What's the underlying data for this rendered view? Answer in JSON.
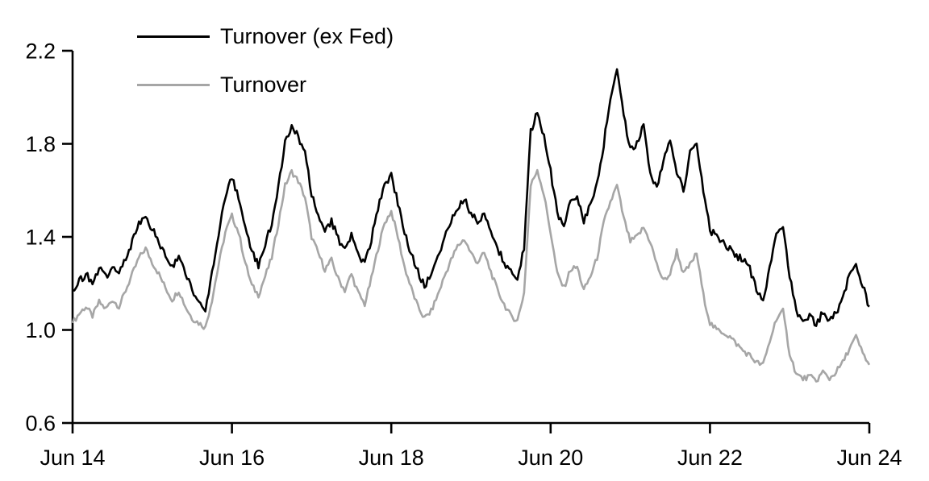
{
  "chart_data": {
    "type": "line",
    "title": "",
    "xlabel": "",
    "ylabel": "",
    "grid": false,
    "legend_position": "top-left",
    "x_axis": {
      "tick_labels": [
        "Jun 14",
        "Jun 16",
        "Jun 18",
        "Jun 20",
        "Jun 22",
        "Jun 24"
      ],
      "tick_month_index": [
        0,
        24,
        48,
        72,
        96,
        120
      ],
      "range_note": "monthly samples, Jun 2014 through Jun 2024 (121 points per series)"
    },
    "y_axis": {
      "min": 0.6,
      "max": 2.2,
      "ticks": [
        0.6,
        1.0,
        1.4,
        1.8,
        2.2
      ],
      "tick_labels": [
        "0.6",
        "1.0",
        "1.4",
        "1.8",
        "2.2"
      ]
    },
    "axis_color": "#000000",
    "series": [
      {
        "name": "Turnover (ex Fed)",
        "color": "#000000",
        "line_width": 2.6,
        "jitter": 0.016,
        "values": [
          1.17,
          1.21,
          1.24,
          1.2,
          1.26,
          1.23,
          1.27,
          1.24,
          1.31,
          1.38,
          1.46,
          1.5,
          1.43,
          1.38,
          1.32,
          1.27,
          1.31,
          1.24,
          1.18,
          1.12,
          1.08,
          1.25,
          1.42,
          1.57,
          1.65,
          1.57,
          1.44,
          1.33,
          1.28,
          1.37,
          1.46,
          1.62,
          1.8,
          1.87,
          1.83,
          1.76,
          1.58,
          1.5,
          1.43,
          1.47,
          1.39,
          1.34,
          1.41,
          1.33,
          1.28,
          1.39,
          1.52,
          1.62,
          1.66,
          1.55,
          1.42,
          1.33,
          1.25,
          1.19,
          1.23,
          1.31,
          1.4,
          1.47,
          1.53,
          1.56,
          1.5,
          1.46,
          1.51,
          1.43,
          1.35,
          1.29,
          1.25,
          1.23,
          1.35,
          1.85,
          1.94,
          1.83,
          1.68,
          1.5,
          1.45,
          1.55,
          1.57,
          1.47,
          1.54,
          1.63,
          1.8,
          2.0,
          2.12,
          1.92,
          1.77,
          1.8,
          1.88,
          1.68,
          1.61,
          1.73,
          1.82,
          1.68,
          1.6,
          1.76,
          1.8,
          1.6,
          1.43,
          1.4,
          1.37,
          1.35,
          1.32,
          1.3,
          1.26,
          1.17,
          1.12,
          1.26,
          1.42,
          1.44,
          1.24,
          1.08,
          1.04,
          1.06,
          1.02,
          1.08,
          1.04,
          1.07,
          1.14,
          1.23,
          1.28,
          1.19,
          1.1
        ]
      },
      {
        "name": "Turnover",
        "color": "#a6a6a6",
        "line_width": 2.6,
        "jitter": 0.012,
        "values": [
          1.03,
          1.07,
          1.1,
          1.06,
          1.12,
          1.09,
          1.13,
          1.1,
          1.17,
          1.24,
          1.31,
          1.35,
          1.29,
          1.24,
          1.18,
          1.13,
          1.17,
          1.1,
          1.05,
          1.03,
          1.01,
          1.13,
          1.28,
          1.42,
          1.49,
          1.42,
          1.29,
          1.19,
          1.15,
          1.23,
          1.31,
          1.46,
          1.62,
          1.68,
          1.64,
          1.57,
          1.4,
          1.33,
          1.26,
          1.3,
          1.22,
          1.17,
          1.24,
          1.16,
          1.11,
          1.22,
          1.35,
          1.46,
          1.51,
          1.4,
          1.27,
          1.18,
          1.1,
          1.05,
          1.08,
          1.15,
          1.23,
          1.3,
          1.36,
          1.39,
          1.33,
          1.29,
          1.33,
          1.25,
          1.17,
          1.11,
          1.06,
          1.04,
          1.16,
          1.62,
          1.69,
          1.58,
          1.42,
          1.24,
          1.18,
          1.26,
          1.27,
          1.17,
          1.23,
          1.31,
          1.46,
          1.55,
          1.62,
          1.48,
          1.38,
          1.4,
          1.44,
          1.38,
          1.28,
          1.21,
          1.24,
          1.34,
          1.24,
          1.28,
          1.33,
          1.15,
          1.03,
          1.0,
          0.99,
          0.97,
          0.94,
          0.91,
          0.89,
          0.86,
          0.85,
          0.95,
          1.05,
          1.08,
          0.9,
          0.81,
          0.79,
          0.8,
          0.78,
          0.82,
          0.79,
          0.82,
          0.86,
          0.92,
          0.97,
          0.9,
          0.85
        ]
      }
    ]
  }
}
